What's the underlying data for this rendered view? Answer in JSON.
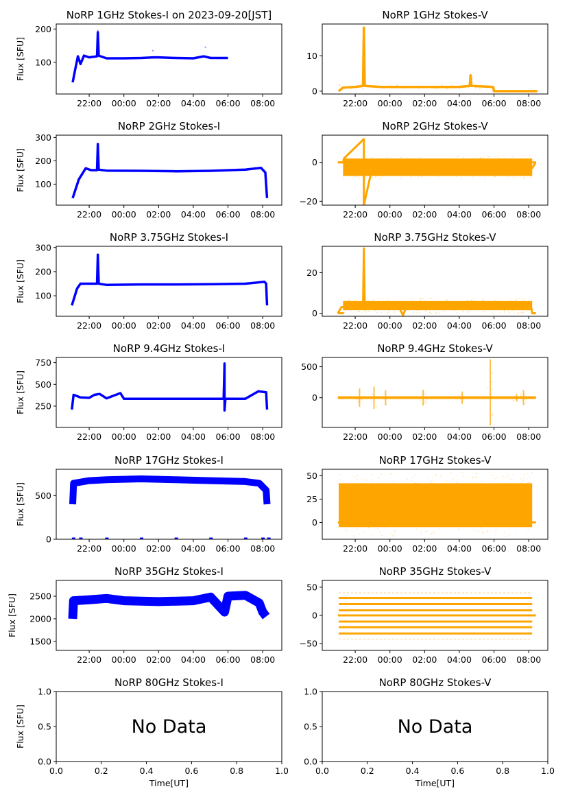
{
  "colors": {
    "stokes_i": "#0000ff",
    "stokes_v": "#ffa500",
    "axis": "#000000"
  },
  "ylabel": "Flux [SFU]",
  "xlabel_bottom": "Time[UT]",
  "no_data_text": "No Data",
  "time_ticks": [
    "22:00",
    "00:00",
    "02:00",
    "04:00",
    "06:00",
    "08:00"
  ],
  "chart_data": [
    {
      "type": "scatter",
      "title": "NoRP 1GHz Stokes-I on 2023-09-20[JST]",
      "series": "Stokes-I",
      "ylabel": "Flux [SFU]",
      "yticks": [
        100,
        200
      ],
      "ylim": [
        5,
        215
      ],
      "xlim_hours": [
        20.1,
        33.1
      ],
      "data_start": "21:05",
      "data_end": "06:00",
      "baseline": 113,
      "peaks": [
        {
          "time": "22:30",
          "value": 195
        },
        {
          "time": "01:40",
          "value": 135
        },
        {
          "time": "04:42",
          "value": 145
        }
      ],
      "points": [
        [
          21.05,
          40
        ],
        [
          21.2,
          80
        ],
        [
          21.35,
          118
        ],
        [
          21.5,
          95
        ],
        [
          21.7,
          120
        ],
        [
          22.0,
          115
        ],
        [
          22.45,
          118
        ],
        [
          22.5,
          190
        ],
        [
          22.55,
          120
        ],
        [
          23.0,
          112
        ],
        [
          24.0,
          112
        ],
        [
          25.0,
          113
        ],
        [
          25.7,
          115
        ],
        [
          26.0,
          115
        ],
        [
          27.0,
          113
        ],
        [
          28.0,
          112
        ],
        [
          28.6,
          118
        ],
        [
          29.0,
          113
        ],
        [
          30.0,
          113
        ]
      ]
    },
    {
      "type": "scatter",
      "title": "NoRP 1GHz Stokes-V",
      "series": "Stokes-V",
      "ylabel": "",
      "yticks": [
        0,
        10
      ],
      "ylim": [
        -0.8,
        19
      ],
      "xlim_hours": [
        20.1,
        33.1
      ],
      "data_start": "21:05",
      "data_end": "08:30",
      "baseline": 1.2,
      "points": [
        [
          21.05,
          0
        ],
        [
          21.3,
          1
        ],
        [
          22.0,
          1.2
        ],
        [
          22.45,
          1.5
        ],
        [
          22.5,
          18
        ],
        [
          22.55,
          1.5
        ],
        [
          23.5,
          1.2
        ],
        [
          24.0,
          1.2
        ],
        [
          26.0,
          1.2
        ],
        [
          28.0,
          1.2
        ],
        [
          28.6,
          1.5
        ],
        [
          28.65,
          4.5
        ],
        [
          28.7,
          1.5
        ],
        [
          29.95,
          1.2
        ],
        [
          30.0,
          0
        ],
        [
          32.5,
          0
        ]
      ]
    },
    {
      "type": "scatter",
      "title": "NoRP 2GHz Stokes-I",
      "series": "Stokes-I",
      "ylabel": "Flux [SFU]",
      "yticks": [
        100,
        200,
        300
      ],
      "ylim": [
        10,
        310
      ],
      "xlim_hours": [
        20.1,
        33.1
      ],
      "data_start": "21:05",
      "data_end": "08:15",
      "baseline": 155,
      "points": [
        [
          21.05,
          40
        ],
        [
          21.4,
          120
        ],
        [
          21.8,
          168
        ],
        [
          22.1,
          160
        ],
        [
          22.45,
          160
        ],
        [
          22.5,
          272
        ],
        [
          22.55,
          162
        ],
        [
          23.0,
          158
        ],
        [
          25.0,
          157
        ],
        [
          27.0,
          155
        ],
        [
          29.0,
          157
        ],
        [
          31.0,
          162
        ],
        [
          31.9,
          170
        ],
        [
          32.15,
          150
        ],
        [
          32.25,
          40
        ]
      ]
    },
    {
      "type": "scatter",
      "title": "NoRP 2GHz Stokes-V",
      "series": "Stokes-V",
      "ylabel": "",
      "yticks": [
        -20,
        0
      ],
      "ylim": [
        -22,
        14
      ],
      "xlim_hours": [
        20.1,
        33.1
      ],
      "data_start": "21:00",
      "data_end": "08:25",
      "band": [
        -7,
        2
      ],
      "points": [
        [
          21.0,
          0
        ],
        [
          21.3,
          0
        ],
        [
          21.35,
          2
        ],
        [
          22.5,
          12
        ],
        [
          22.5,
          -22
        ],
        [
          23.0,
          -2
        ],
        [
          32.2,
          -3
        ],
        [
          32.4,
          0
        ]
      ]
    },
    {
      "type": "scatter",
      "title": "NoRP 3.75GHz Stokes-I",
      "series": "Stokes-I",
      "ylabel": "Flux [SFU]",
      "yticks": [
        100,
        200,
        300
      ],
      "ylim": [
        15,
        305
      ],
      "xlim_hours": [
        20.1,
        33.1
      ],
      "data_start": "21:00",
      "data_end": "08:15",
      "baseline": 147,
      "points": [
        [
          21.0,
          60
        ],
        [
          21.3,
          130
        ],
        [
          21.5,
          150
        ],
        [
          22.45,
          150
        ],
        [
          22.5,
          270
        ],
        [
          22.55,
          150
        ],
        [
          23.0,
          145
        ],
        [
          25.0,
          147
        ],
        [
          27.0,
          147
        ],
        [
          29.0,
          148
        ],
        [
          31.0,
          150
        ],
        [
          32.1,
          158
        ],
        [
          32.2,
          150
        ],
        [
          32.25,
          60
        ]
      ]
    },
    {
      "type": "scatter",
      "title": "NoRP 3.75GHz Stokes-V",
      "series": "Stokes-V",
      "ylabel": "",
      "yticks": [
        0,
        20
      ],
      "ylim": [
        -1.5,
        33
      ],
      "xlim_hours": [
        20.1,
        33.1
      ],
      "data_start": "21:00",
      "data_end": "08:25",
      "band": [
        1.5,
        6
      ],
      "points": [
        [
          21.0,
          0
        ],
        [
          21.2,
          3
        ],
        [
          22.45,
          3.5
        ],
        [
          22.5,
          32
        ],
        [
          22.55,
          4
        ],
        [
          24.5,
          3.5
        ],
        [
          24.75,
          -1
        ],
        [
          25.0,
          4
        ],
        [
          27.0,
          3.5
        ],
        [
          29.0,
          3.5
        ],
        [
          32.1,
          5
        ],
        [
          32.2,
          0
        ],
        [
          32.4,
          0
        ]
      ]
    },
    {
      "type": "scatter",
      "title": "NoRP 9.4GHz Stokes-I",
      "series": "Stokes-I",
      "ylabel": "Flux [SFU]",
      "yticks": [
        250,
        500,
        750
      ],
      "ylim": [
        5,
        810
      ],
      "xlim_hours": [
        20.1,
        33.1
      ],
      "data_start": "21:00",
      "data_end": "08:15",
      "baseline": 340,
      "points": [
        [
          21.0,
          210
        ],
        [
          21.1,
          380
        ],
        [
          21.5,
          350
        ],
        [
          22.0,
          345
        ],
        [
          22.3,
          380
        ],
        [
          22.6,
          390
        ],
        [
          23.0,
          340
        ],
        [
          23.8,
          400
        ],
        [
          24.0,
          335
        ],
        [
          26.0,
          335
        ],
        [
          28.0,
          335
        ],
        [
          29.75,
          335
        ],
        [
          29.8,
          740
        ],
        [
          29.8,
          200
        ],
        [
          29.85,
          335
        ],
        [
          31.0,
          335
        ],
        [
          31.75,
          420
        ],
        [
          32.2,
          410
        ],
        [
          32.25,
          210
        ]
      ]
    },
    {
      "type": "scatter",
      "title": "NoRP 9.4GHz Stokes-V",
      "series": "Stokes-V",
      "ylabel": "",
      "yticks": [
        0,
        500
      ],
      "ylim": [
        -480,
        650
      ],
      "xlim_hours": [
        20.1,
        33.1
      ],
      "data_start": "21:00",
      "data_end": "08:25",
      "baseline": 0,
      "spikes": [
        {
          "time": "22:15",
          "lo": -150,
          "hi": 150
        },
        {
          "time": "23:05",
          "lo": -180,
          "hi": 180
        },
        {
          "time": "23:45",
          "lo": -120,
          "hi": 120
        },
        {
          "time": "01:55",
          "lo": -130,
          "hi": 130
        },
        {
          "time": "04:10",
          "lo": -100,
          "hi": 100
        },
        {
          "time": "05:47",
          "lo": -450,
          "hi": 620
        },
        {
          "time": "07:18",
          "lo": -60,
          "hi": 60
        },
        {
          "time": "07:42",
          "lo": -120,
          "hi": 120
        }
      ]
    },
    {
      "type": "scatter",
      "title": "NoRP 17GHz Stokes-I",
      "series": "Stokes-I",
      "ylabel": "Flux [SFU]",
      "yticks": [
        0,
        500
      ],
      "ylim": [
        0,
        800
      ],
      "xlim_hours": [
        20.1,
        33.1
      ],
      "data_start": "21:05",
      "data_end": "08:15",
      "band_center": 660,
      "points": [
        [
          21.05,
          400
        ],
        [
          21.1,
          640
        ],
        [
          22.0,
          670
        ],
        [
          23.0,
          680
        ],
        [
          25.0,
          690
        ],
        [
          27.0,
          680
        ],
        [
          29.0,
          670
        ],
        [
          31.0,
          660
        ],
        [
          31.8,
          640
        ],
        [
          32.2,
          560
        ],
        [
          32.25,
          400
        ]
      ],
      "zero_marks": [
        "21:05",
        "21:30",
        "23:00",
        "01:00",
        "03:00",
        "05:00",
        "07:00",
        "08:00",
        "08:20"
      ]
    },
    {
      "type": "scatter",
      "title": "NoRP 17GHz Stokes-V",
      "series": "Stokes-V",
      "ylabel": "",
      "yticks": [
        0,
        25,
        50
      ],
      "ylim": [
        -18,
        57
      ],
      "xlim_hours": [
        20.1,
        33.1
      ],
      "data_start": "21:00",
      "data_end": "08:25",
      "band": [
        -5,
        42
      ],
      "baseline": 0
    },
    {
      "type": "scatter",
      "title": "NoRP 35GHz Stokes-I",
      "series": "Stokes-I",
      "ylabel": "Flux [SFU]",
      "yticks": [
        1500,
        2000,
        2500
      ],
      "ylim": [
        1300,
        2850
      ],
      "xlim_hours": [
        20.1,
        33.1
      ],
      "data_start": "21:05",
      "data_end": "08:15",
      "band_center": 2400,
      "points": [
        [
          21.05,
          2000
        ],
        [
          21.1,
          2400
        ],
        [
          22.0,
          2420
        ],
        [
          23.0,
          2450
        ],
        [
          24.0,
          2400
        ],
        [
          26.0,
          2380
        ],
        [
          28.0,
          2400
        ],
        [
          29.0,
          2480
        ],
        [
          29.8,
          2150
        ],
        [
          30.0,
          2500
        ],
        [
          31.0,
          2520
        ],
        [
          31.8,
          2350
        ],
        [
          32.0,
          2150
        ],
        [
          32.2,
          2050
        ]
      ]
    },
    {
      "type": "scatter",
      "title": "NoRP 35GHz Stokes-V",
      "series": "Stokes-V",
      "ylabel": "",
      "yticks": [
        -50,
        0,
        50
      ],
      "ylim": [
        -62,
        62
      ],
      "xlim_hours": [
        20.1,
        33.1
      ],
      "data_start": "21:00",
      "data_end": "08:25",
      "levels": [
        -42,
        -32,
        -21,
        -11,
        0,
        9,
        20,
        31,
        40
      ]
    },
    {
      "type": "scatter",
      "title": "NoRP 80GHz Stokes-I",
      "series": "Stokes-I",
      "ylabel": "Flux [SFU]",
      "xlabel": "Time[UT]",
      "xticks": [
        "0.0",
        "0.2",
        "0.4",
        "0.6",
        "0.8",
        "1.0"
      ],
      "yticks": [
        "0.0",
        "0.5",
        "1.0"
      ],
      "xlim": [
        0,
        1
      ],
      "ylim": [
        0,
        1
      ],
      "annotation": "No Data"
    },
    {
      "type": "scatter",
      "title": "NoRP 80GHz Stokes-V",
      "series": "Stokes-V",
      "ylabel": "",
      "xlabel": "Time[UT]",
      "xticks": [
        "0.0",
        "0.2",
        "0.4",
        "0.6",
        "0.8",
        "1.0"
      ],
      "yticks": [
        "0.0",
        "0.5",
        "1.0"
      ],
      "xlim": [
        0,
        1
      ],
      "ylim": [
        0,
        1
      ],
      "annotation": "No Data"
    }
  ]
}
